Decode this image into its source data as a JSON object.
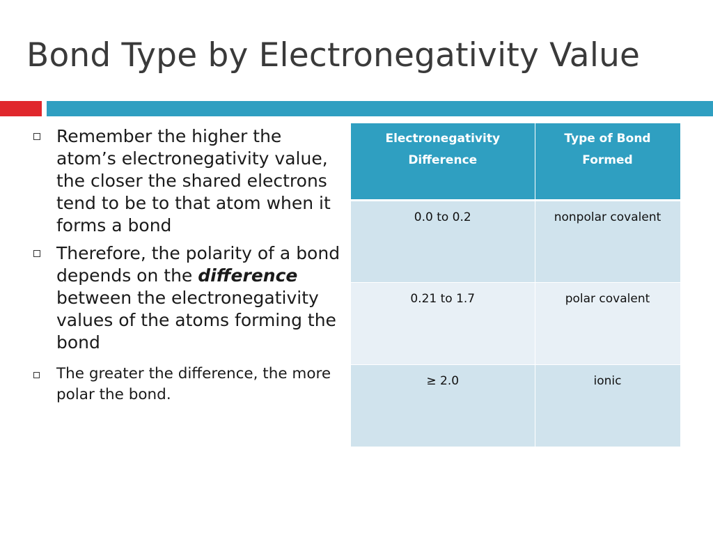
{
  "slide": {
    "title": "Bond Type by Electronegativity Value"
  },
  "colors": {
    "accent_red": "#e0282d",
    "accent_blue": "#2f9fc1",
    "row_dark": "#d0e3ed",
    "row_light": "#e8f0f6"
  },
  "bullets": [
    {
      "text": "Remember the higher the atom’s electronegativity value, the closer the shared electrons tend to be to that atom when it forms a bond"
    },
    {
      "before": "Therefore, the polarity of a bond depends on the ",
      "emphasis": "difference",
      "after": " between the electronegativity values of the atoms forming the bond"
    },
    {
      "text": "The greater the difference, the more polar the bond."
    }
  ],
  "table": {
    "headers": [
      "Electronegativity Difference",
      "Type of Bond Formed"
    ],
    "rows": [
      [
        "0.0 to 0.2",
        "nonpolar covalent"
      ],
      [
        "0.21 to 1.7",
        "polar covalent"
      ],
      [
        "≥ 2.0",
        "ionic"
      ]
    ]
  }
}
